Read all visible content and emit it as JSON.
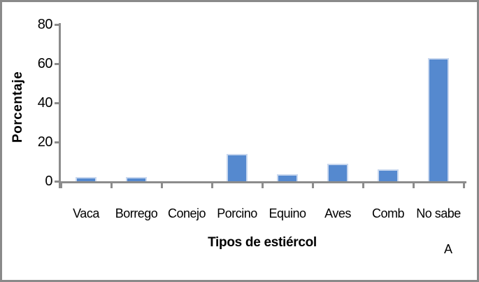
{
  "frame": {
    "border_color": "#8a8a8a",
    "background_color": "#ffffff"
  },
  "chart_data": {
    "type": "bar",
    "title": "",
    "categories": [
      "Vaca",
      "Borrego",
      "Conejo",
      "Porcino",
      "Equino",
      "Aves",
      "Comb",
      "No sabe"
    ],
    "values": [
      2,
      2,
      0,
      14,
      3.5,
      9,
      6,
      63
    ],
    "series_name": "Porcentaje",
    "xlabel": "Tipos de estiércol",
    "ylabel": "Porcentaje",
    "ylim": [
      0,
      80
    ],
    "yticks": [
      0,
      20,
      40,
      60,
      80
    ],
    "grid": false,
    "legend_position": "none",
    "bar_color": "#5589cf",
    "bar_border_color": "#c9d8ef",
    "axis_color": "#8c8c8c",
    "text_color": "#000000",
    "annotation": "A"
  }
}
